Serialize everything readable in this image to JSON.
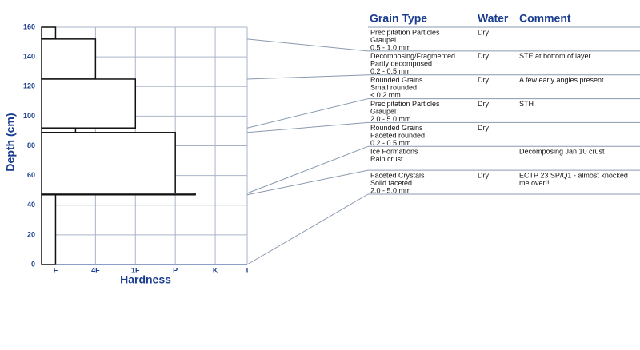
{
  "chart_data": {
    "type": "snowprofile",
    "xlabel": "Hardness",
    "ylabel": "Depth (cm)",
    "columns": [
      "Grain Type",
      "Water",
      "Comment"
    ],
    "ylim": [
      0,
      160
    ],
    "yticks": [
      0,
      20,
      40,
      60,
      80,
      100,
      120,
      140,
      160
    ],
    "xlim": [
      0.65,
      5.8
    ],
    "xticks": [
      {
        "value": 1,
        "label": "F"
      },
      {
        "value": 2,
        "label": "4F"
      },
      {
        "value": 3,
        "label": "1F"
      },
      {
        "value": 4,
        "label": "P"
      },
      {
        "value": 5,
        "label": "K"
      },
      {
        "value": 5.8,
        "label": "I"
      }
    ],
    "grid": true,
    "layers": [
      {
        "top": 160,
        "bottom": 152,
        "hardness": 1,
        "grain": [
          "Precipitation Particles",
          "Graupel",
          "0.5 - 1.0 mm"
        ],
        "water": "Dry"
      },
      {
        "top": 152,
        "bottom": 125,
        "hardness": 2,
        "grain": [
          "Decomposing/Fragmented",
          "Partly decomposed",
          "0.2 - 0.5 mm"
        ],
        "water": "Dry",
        "comment": "STE at bottom of layer"
      },
      {
        "top": 125,
        "bottom": 92,
        "hardness": 3,
        "grain": [
          "Rounded Grains",
          "Small rounded",
          "< 0.2 mm"
        ],
        "water": "Dry",
        "comment": "A few early angles present"
      },
      {
        "top": 92,
        "bottom": 89,
        "hardness": 1.5,
        "grain": [
          "Precipitation Particles",
          "Graupel",
          "2.0 - 5.0 mm"
        ],
        "water": "Dry",
        "comment": "STH"
      },
      {
        "top": 89,
        "bottom": 48,
        "hardness": 4,
        "grain": [
          "Rounded Grains",
          "Faceted rounded",
          "0.2 - 0.5 mm"
        ],
        "water": "Dry"
      },
      {
        "top": 48,
        "bottom": 47,
        "hardness": 4.5,
        "grain": [
          "Ice Formations",
          "Rain crust"
        ],
        "comment": "Decomposing Jan 10 crust"
      },
      {
        "top": 47,
        "bottom": 0,
        "hardness": 1,
        "grain": [
          "Faceted Crystals",
          "Solid faceted",
          "2.0 - 5.0 mm"
        ],
        "water": "Dry",
        "comment": [
          "ECTP 23 SP/Q1 - almost knocked",
          "me over!!"
        ]
      }
    ]
  }
}
